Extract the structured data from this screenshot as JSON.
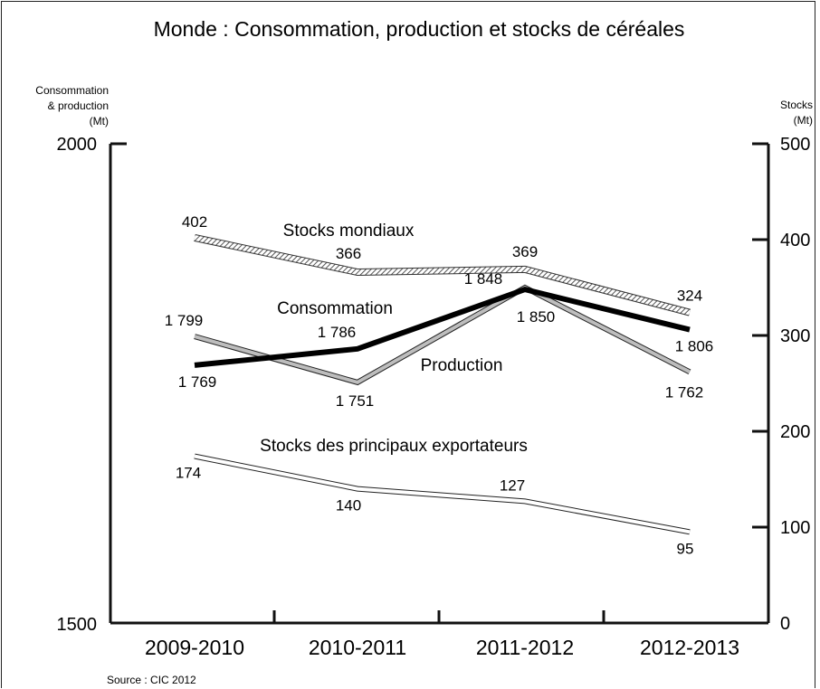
{
  "chart_data": {
    "type": "line",
    "title": "Monde : Consommation, production et stocks de céréales",
    "source": "Source : CIC 2012",
    "left_axis": {
      "label_lines": [
        "Consommation",
        "& production",
        "(Mt)"
      ],
      "range": [
        1500,
        2000
      ],
      "tick_labels": [
        "2000",
        "1500"
      ]
    },
    "right_axis": {
      "label_lines": [
        "Stocks",
        "(Mt)"
      ],
      "range": [
        0,
        500
      ],
      "ticks": [
        0,
        100,
        200,
        300,
        400,
        500
      ]
    },
    "categories": [
      "2009-2010",
      "2010-2011",
      "2011-2012",
      "2012-2013"
    ],
    "series": [
      {
        "name": "Stocks mondiaux",
        "axis": "right",
        "style": "hatched",
        "values": [
          402,
          366,
          369,
          324
        ],
        "value_labels": [
          "402",
          "366",
          "369",
          "324"
        ]
      },
      {
        "name": "Consommation",
        "axis": "left",
        "style": "bold",
        "values": [
          1769,
          1786,
          1848,
          1806
        ],
        "value_labels": [
          "1 769",
          "1 786",
          "1 848",
          "1 806"
        ]
      },
      {
        "name": "Production",
        "axis": "left",
        "style": "grey",
        "values": [
          1799,
          1751,
          1850,
          1762
        ],
        "value_labels": [
          "1 799",
          "1 751",
          "1 850",
          "1 762"
        ]
      },
      {
        "name": "Stocks des principaux exportateurs",
        "axis": "right",
        "style": "outline",
        "values": [
          174,
          140,
          127,
          95
        ],
        "value_labels": [
          "174",
          "140",
          "127",
          "95"
        ]
      }
    ]
  }
}
